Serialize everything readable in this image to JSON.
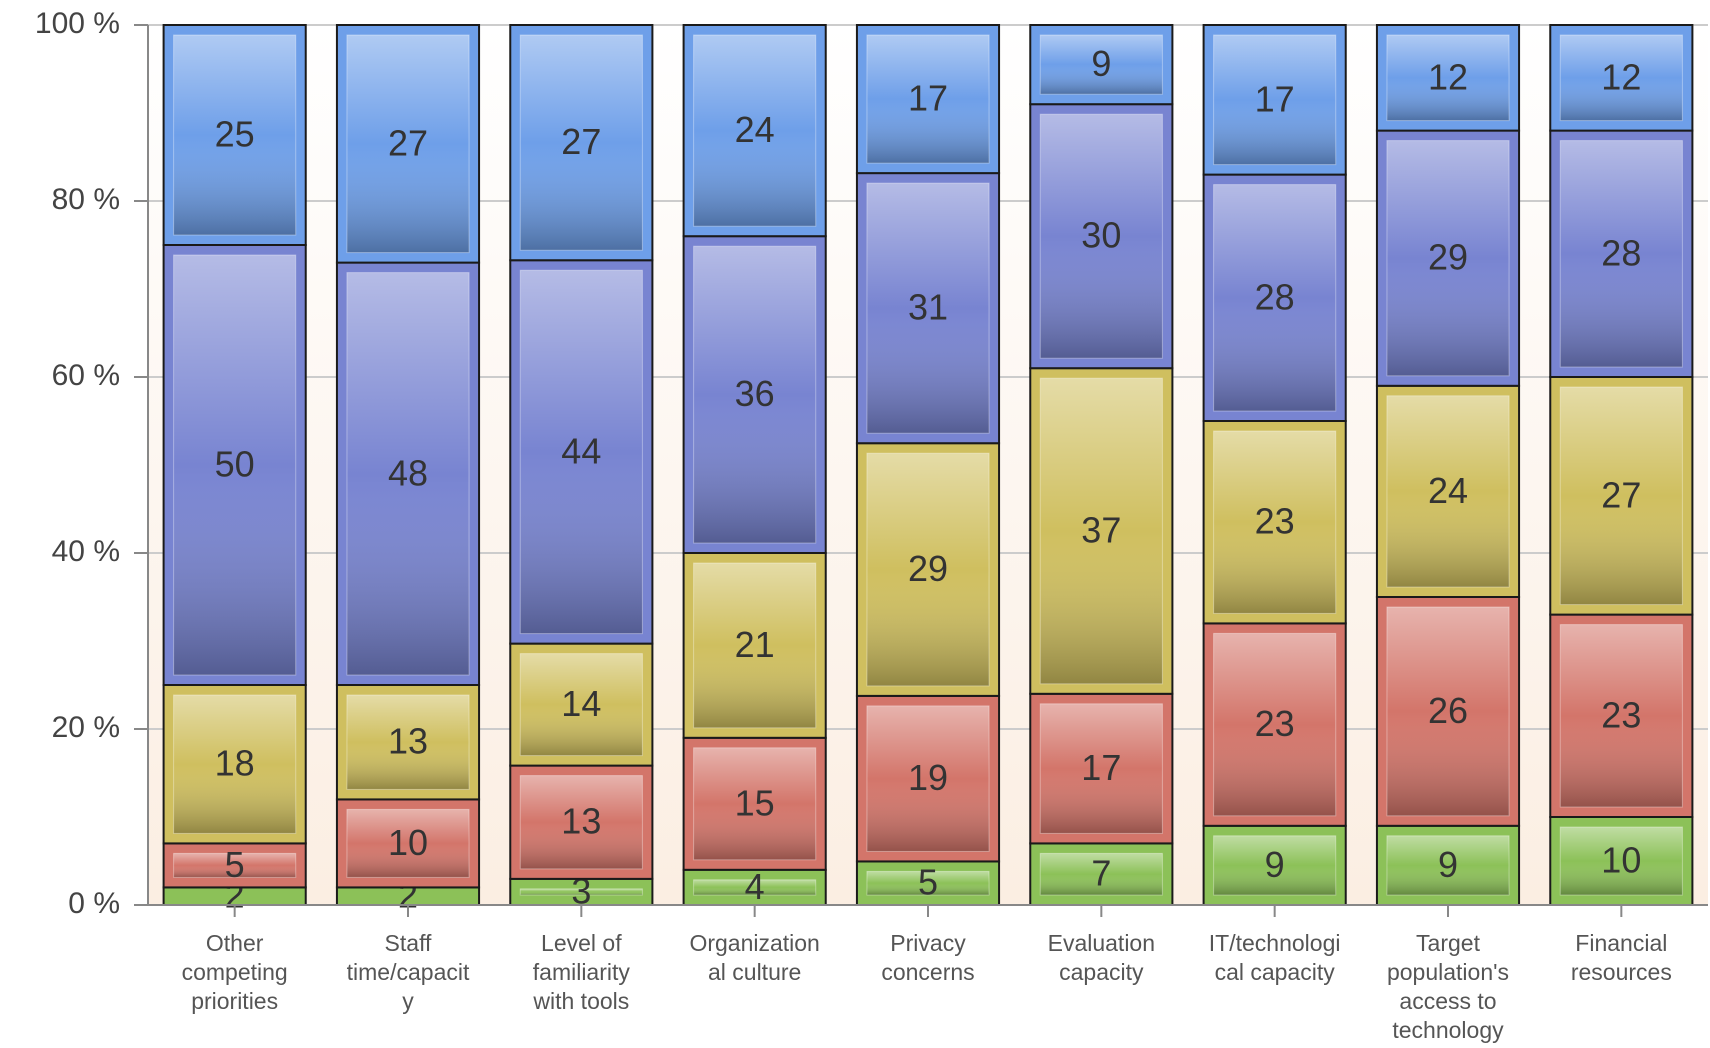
{
  "chart_data": {
    "type": "bar",
    "stacking": "percent",
    "categories": [
      "Other\ncompeting\npriorities",
      "Staff\ntime/capacit\ny",
      "Level of\nfamiliarity\nwith tools",
      "Organization\nal culture",
      "Privacy\nconcerns",
      "Evaluation\ncapacity",
      "IT/technologi\ncal capacity",
      "Target\npopulation's\naccess to\ntechnology",
      "Financial\nresources"
    ],
    "series": [
      {
        "color": "#8cc158",
        "values": [
          2,
          2,
          3,
          4,
          5,
          7,
          9,
          9,
          10
        ]
      },
      {
        "color": "#d3756a",
        "values": [
          5,
          10,
          13,
          15,
          19,
          17,
          23,
          26,
          23
        ]
      },
      {
        "color": "#cfbf5f",
        "values": [
          18,
          13,
          14,
          21,
          29,
          37,
          23,
          24,
          27
        ]
      },
      {
        "color": "#7884d1",
        "values": [
          50,
          48,
          44,
          36,
          31,
          30,
          28,
          29,
          28
        ]
      },
      {
        "color": "#6e9fe9",
        "values": [
          25,
          27,
          27,
          24,
          17,
          9,
          17,
          12,
          12
        ]
      }
    ],
    "ylim": [
      0,
      100
    ],
    "yticks": [
      {
        "value": 0,
        "label": "0 %"
      },
      {
        "value": 20,
        "label": "20 %"
      },
      {
        "value": 40,
        "label": "40 %"
      },
      {
        "value": 60,
        "label": "60 %"
      },
      {
        "value": 80,
        "label": "80 %"
      },
      {
        "value": 100,
        "label": "100 %"
      }
    ],
    "grid": true
  }
}
